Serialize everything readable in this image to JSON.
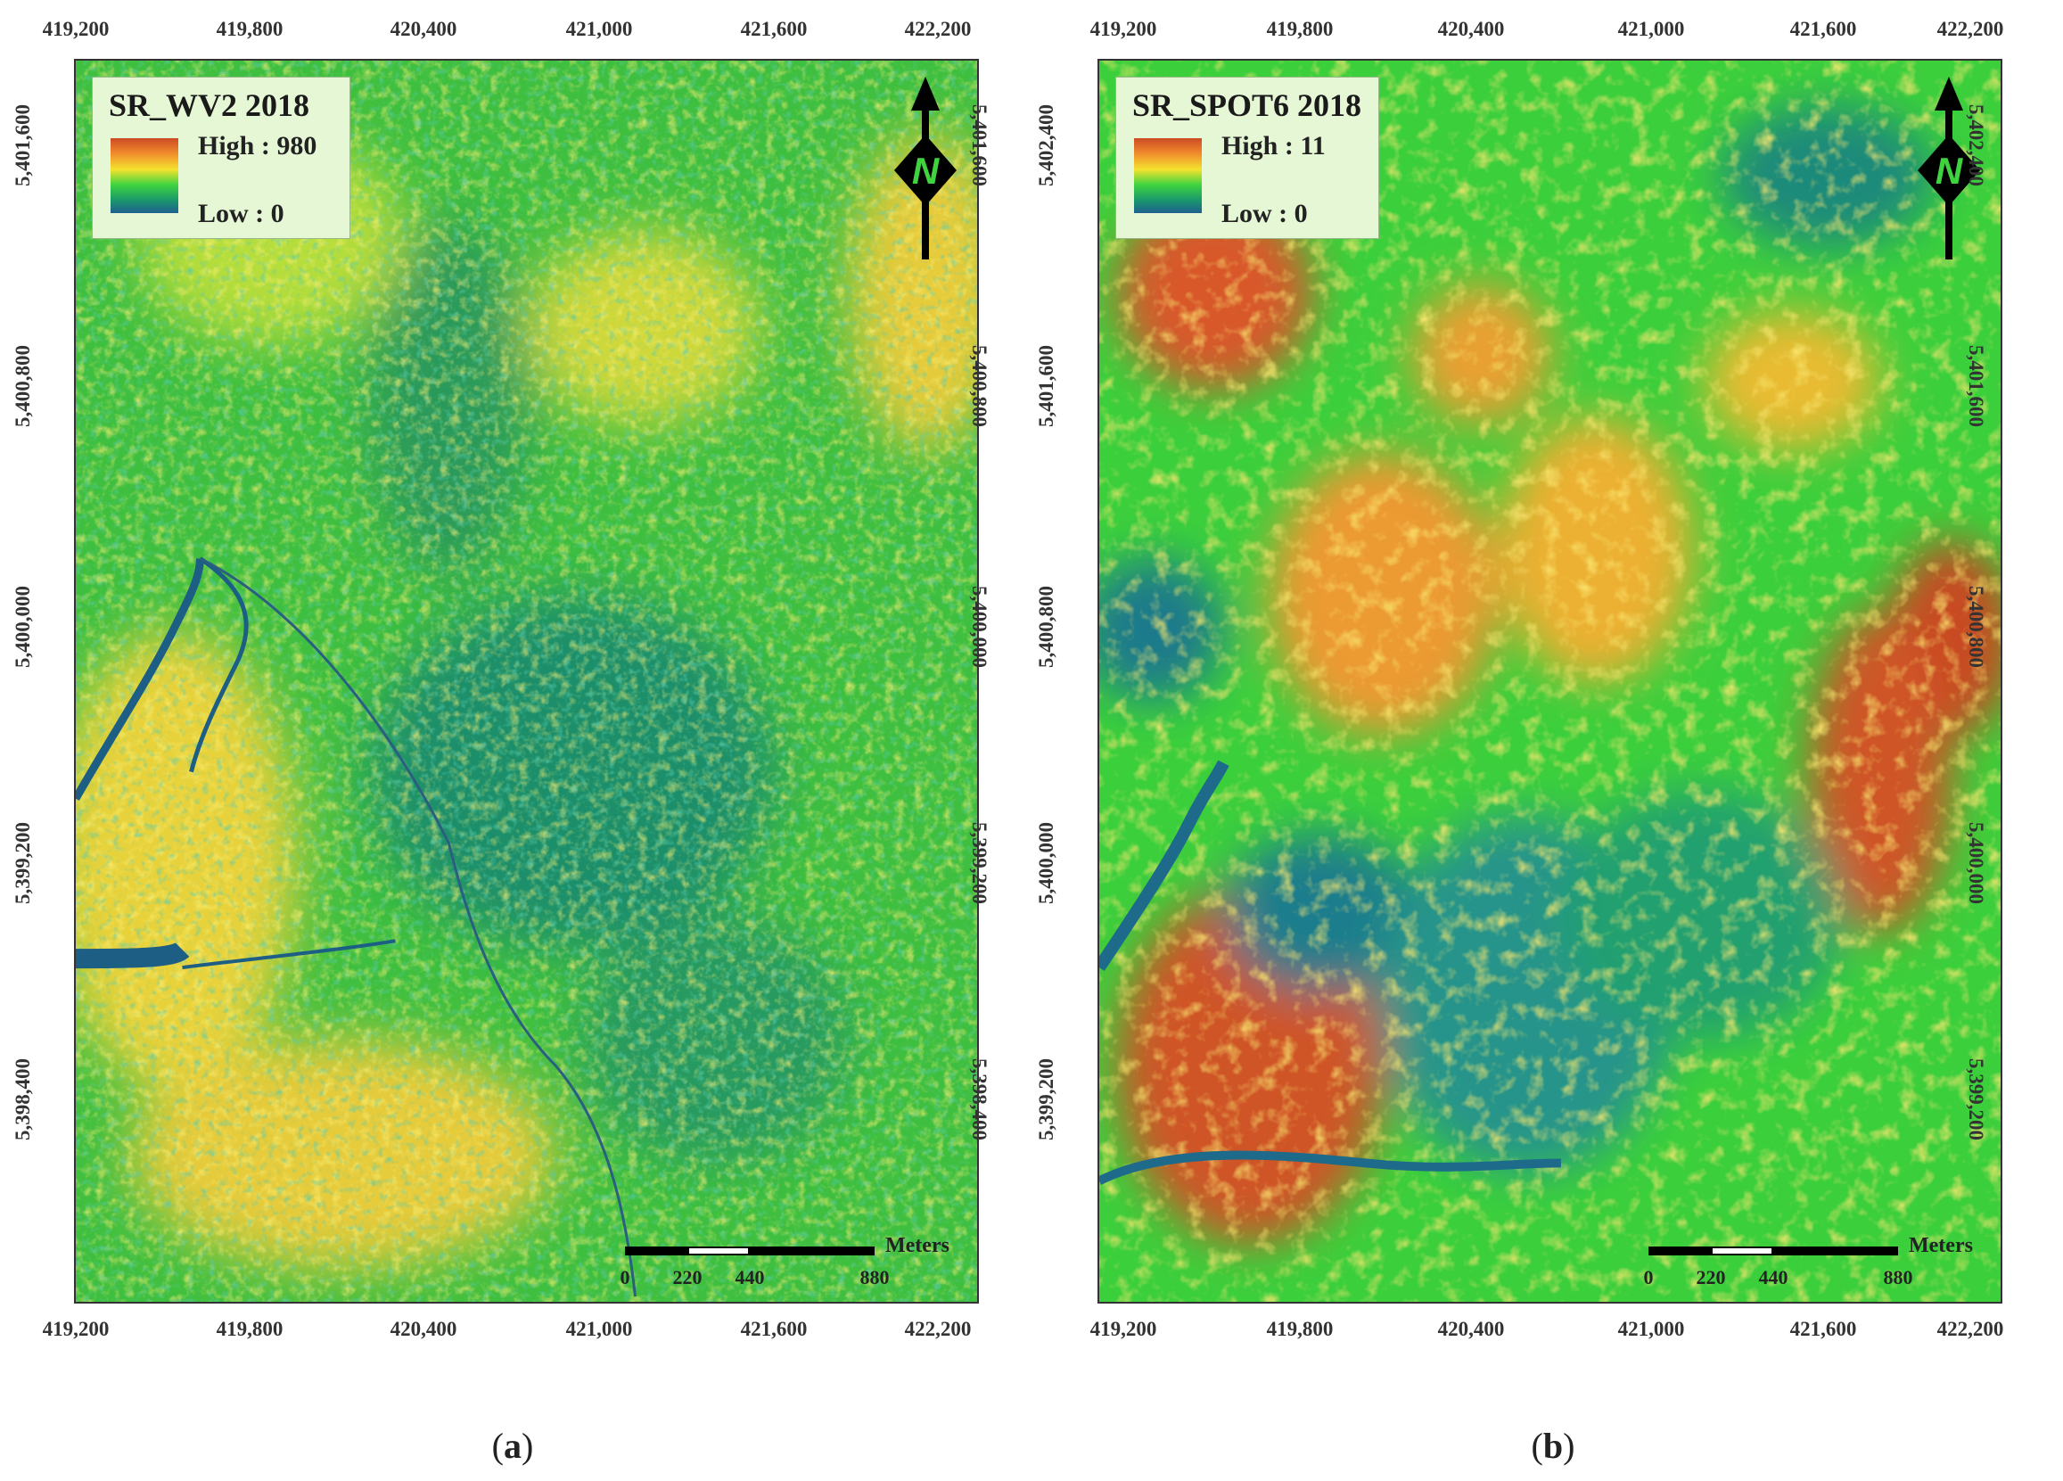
{
  "panels": [
    {
      "id": "a",
      "caption_letter": "a",
      "legend": {
        "title": "SR_WV2 2018",
        "high_label": "High : 980",
        "low_label": "Low : 0"
      },
      "x_ticks": [
        "419,200",
        "419,800",
        "420,400",
        "421,000",
        "421,600",
        "422,200"
      ],
      "y_ticks": [
        "5,401,600",
        "5,400,800",
        "5,400,000",
        "5,399,200",
        "5,398,400"
      ],
      "north_label": "N",
      "scale": {
        "unit": "Meters",
        "labels": [
          "0",
          "220",
          "440",
          "880"
        ]
      }
    },
    {
      "id": "b",
      "caption_letter": "b",
      "legend": {
        "title": "SR_SPOT6 2018",
        "high_label": "High : 11",
        "low_label": "Low : 0"
      },
      "x_ticks": [
        "419,200",
        "419,800",
        "420,400",
        "421,000",
        "421,600",
        "422,200"
      ],
      "y_ticks": [
        "5,402,400",
        "5,401,600",
        "5,400,800",
        "5,400,000",
        "5,399,200"
      ],
      "north_label": "N",
      "scale": {
        "unit": "Meters",
        "labels": [
          "0",
          "220",
          "440",
          "880"
        ]
      }
    }
  ],
  "colors": {
    "high": "#cc4a23",
    "mid_high": "#f08b2c",
    "mid": "#f4e22e",
    "mid_low": "#3fd43f",
    "low_mid": "#1a9a6a",
    "low": "#1f5f8f",
    "river": "#1d5e84"
  }
}
